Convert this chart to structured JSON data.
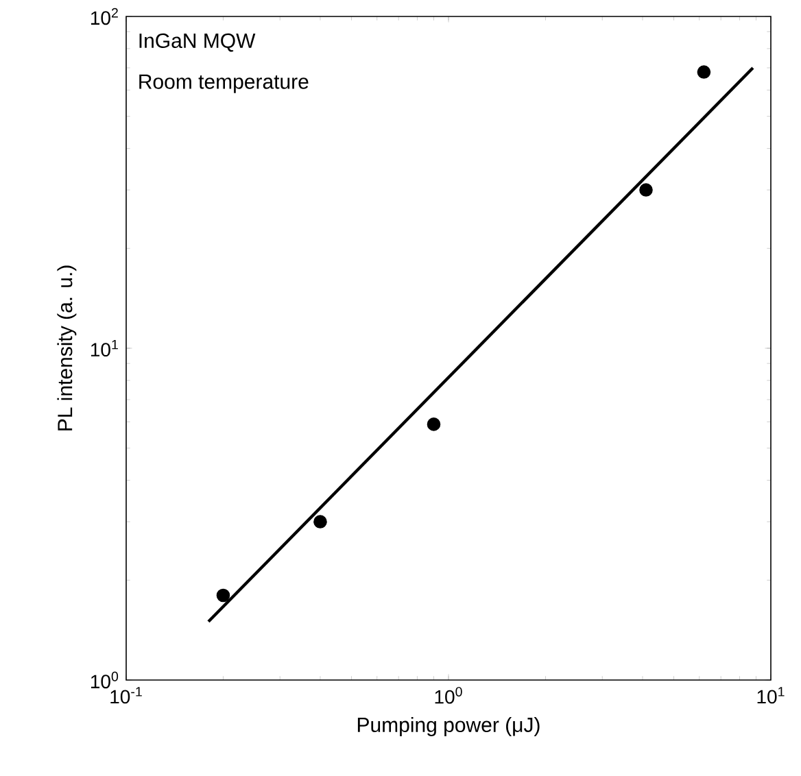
{
  "chart_data": {
    "type": "scatter",
    "xlabel": "Pumping power (μJ)",
    "ylabel": "PL intensity (a. u.)",
    "annotations": [
      "InGaN MQW",
      "Room temperature"
    ],
    "series": [
      {
        "color": "#000000",
        "x": [
          0.2,
          0.4,
          0.9,
          4.1,
          6.2
        ],
        "values": [
          1.8,
          3.0,
          5.9,
          30,
          68
        ]
      },
      {
        "type": "line",
        "color": "#000000",
        "line_style": "solid",
        "marker": "none",
        "x": [
          0.18,
          8.8
        ],
        "values": [
          1.5,
          70
        ]
      }
    ],
    "log": "xy",
    "grid": false,
    "marker": "circle",
    "xlim": [
      0.1,
      10
    ],
    "ylim": [
      1,
      100
    ],
    "xticks": [
      {
        "value": 0.1,
        "label": "10$^{-1}$"
      },
      {
        "value": 1,
        "label": "10$^{0}$"
      },
      {
        "value": 10,
        "label": "10$^{1}$"
      }
    ],
    "yticks": [
      {
        "value": 1,
        "label": "10$^{0}$"
      },
      {
        "value": 10,
        "label": "10$^{1}$"
      },
      {
        "value": 100,
        "label": "10$^{2}$"
      }
    ]
  }
}
